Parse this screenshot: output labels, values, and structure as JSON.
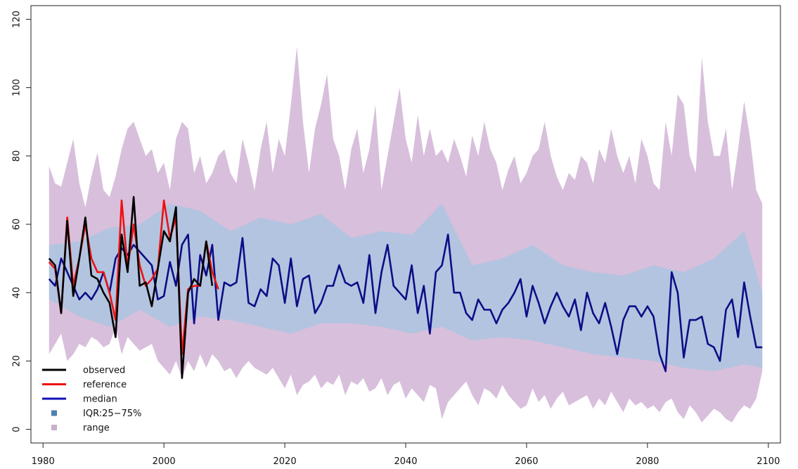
{
  "chart_data": {
    "type": "line",
    "title": "",
    "xlabel": "",
    "ylabel": "",
    "xlim": [
      1978,
      2102
    ],
    "ylim": [
      -4,
      124
    ],
    "x_ticks": [
      1980,
      2000,
      2020,
      2040,
      2060,
      2080,
      2100
    ],
    "y_ticks": [
      0,
      20,
      40,
      60,
      80,
      100,
      120
    ],
    "x_tick_labels": [
      "1980",
      "2000",
      "2020",
      "2040",
      "2060",
      "2080",
      "2100"
    ],
    "y_tick_labels": [
      "0",
      "20",
      "40",
      "60",
      "80",
      "100",
      "120"
    ],
    "grid": false,
    "legend_position": "bottom-left",
    "colors": {
      "observed": "#000000",
      "reference": "#ee1111",
      "median": "#0d0d86",
      "iqr": "#afc4e0",
      "range": "#d8bfdc",
      "iqr_legend": "#4f7fb2",
      "range_legend": "#c9b0cf"
    },
    "legend": [
      {
        "label": "observed",
        "kind": "line",
        "color": "#000000"
      },
      {
        "label": "reference",
        "kind": "line",
        "color": "#ee1111"
      },
      {
        "label": "median",
        "kind": "line",
        "color": "#1010b8"
      },
      {
        "label": "IQR:25−75%",
        "kind": "box",
        "color": "#4f7fb2"
      },
      {
        "label": "range",
        "kind": "box",
        "color": "#c9b0cf"
      }
    ],
    "series": [
      {
        "name": "observed",
        "x": [
          1981,
          1982,
          1983,
          1984,
          1985,
          1986,
          1987,
          1988,
          1989,
          1990,
          1991,
          1992,
          1993,
          1994,
          1995,
          1996,
          1997,
          1998,
          1999,
          2000,
          2001,
          2002,
          2003,
          2004,
          2005,
          2006,
          2007,
          2008
        ],
        "values": [
          50,
          48,
          34,
          61,
          39,
          50,
          62,
          45,
          44,
          40,
          37,
          27,
          57,
          46,
          68,
          42,
          43,
          36,
          47,
          58,
          55,
          65,
          15,
          40,
          44,
          42,
          55,
          42
        ]
      },
      {
        "name": "reference",
        "x": [
          1981,
          1982,
          1983,
          1984,
          1985,
          1986,
          1987,
          1988,
          1989,
          1990,
          1991,
          1992,
          1993,
          1994,
          1995,
          1996,
          1997,
          1998,
          1999,
          2000,
          2001,
          2002,
          2003,
          2004,
          2005,
          2006,
          2007,
          2008,
          2009
        ],
        "values": [
          49,
          47,
          34,
          62,
          42,
          50,
          60,
          50,
          46,
          46,
          40,
          32,
          67,
          47,
          60,
          48,
          42,
          44,
          47,
          67,
          56,
          62,
          22,
          41,
          42,
          42,
          55,
          46,
          41
        ]
      },
      {
        "name": "median",
        "x": [
          1981,
          1982,
          1983,
          1984,
          1985,
          1986,
          1987,
          1988,
          1989,
          1990,
          1991,
          1992,
          1993,
          1994,
          1995,
          1996,
          1997,
          1998,
          1999,
          2000,
          2001,
          2002,
          2003,
          2004,
          2005,
          2006,
          2007,
          2008,
          2009,
          2010,
          2011,
          2012,
          2013,
          2014,
          2015,
          2016,
          2017,
          2018,
          2019,
          2020,
          2021,
          2022,
          2023,
          2024,
          2025,
          2026,
          2027,
          2028,
          2029,
          2030,
          2031,
          2032,
          2033,
          2034,
          2035,
          2036,
          2037,
          2038,
          2039,
          2040,
          2041,
          2042,
          2043,
          2044,
          2045,
          2046,
          2047,
          2048,
          2049,
          2050,
          2051,
          2052,
          2053,
          2054,
          2055,
          2056,
          2057,
          2058,
          2059,
          2060,
          2061,
          2062,
          2063,
          2064,
          2065,
          2066,
          2067,
          2068,
          2069,
          2070,
          2071,
          2072,
          2073,
          2074,
          2075,
          2076,
          2077,
          2078,
          2079,
          2080,
          2081,
          2082,
          2083,
          2084,
          2085,
          2086,
          2087,
          2088,
          2089,
          2090,
          2091,
          2092,
          2093,
          2094,
          2095,
          2096,
          2097,
          2098,
          2099
        ],
        "values": [
          44,
          42,
          50,
          46,
          42,
          38,
          40,
          38,
          41,
          46,
          40,
          50,
          53,
          51,
          54,
          52,
          50,
          48,
          38,
          39,
          49,
          42,
          54,
          57,
          31,
          51,
          45,
          54,
          32,
          43,
          42,
          43,
          56,
          37,
          36,
          41,
          39,
          50,
          48,
          37,
          50,
          36,
          44,
          45,
          34,
          37,
          42,
          42,
          48,
          43,
          42,
          43,
          37,
          51,
          34,
          46,
          54,
          42,
          40,
          38,
          48,
          34,
          42,
          28,
          46,
          48,
          57,
          40,
          40,
          34,
          32,
          38,
          35,
          35,
          31,
          35,
          37,
          40,
          44,
          33,
          42,
          37,
          31,
          36,
          40,
          36,
          33,
          38,
          29,
          40,
          34,
          31,
          37,
          30,
          22,
          32,
          36,
          36,
          33,
          36,
          33,
          22,
          17,
          46,
          40,
          21,
          32,
          32,
          33,
          25,
          24,
          20,
          35,
          38,
          27,
          43,
          33,
          24,
          24
        ]
      }
    ],
    "iqr_band": {
      "x": [
        1981,
        1986,
        1991,
        1996,
        2001,
        2006,
        2011,
        2016,
        2021,
        2026,
        2031,
        2036,
        2041,
        2046,
        2051,
        2056,
        2061,
        2066,
        2071,
        2076,
        2081,
        2086,
        2091,
        2096,
        2099
      ],
      "lower": [
        38,
        33,
        30,
        35,
        30,
        33,
        32,
        30,
        28,
        31,
        31,
        30,
        28,
        30,
        26,
        27,
        26,
        24,
        22,
        21,
        20,
        18,
        17,
        19,
        18
      ],
      "upper": [
        54,
        55,
        59,
        60,
        66,
        64,
        58,
        62,
        60,
        63,
        56,
        58,
        57,
        66,
        48,
        50,
        54,
        48,
        46,
        45,
        48,
        46,
        50,
        58,
        40
      ]
    },
    "range_band": {
      "x": [
        1981,
        1982,
        1983,
        1984,
        1985,
        1986,
        1987,
        1988,
        1989,
        1990,
        1991,
        1992,
        1993,
        1994,
        1995,
        1996,
        1997,
        1998,
        1999,
        2000,
        2001,
        2002,
        2003,
        2004,
        2005,
        2006,
        2007,
        2008,
        2009,
        2010,
        2011,
        2012,
        2013,
        2014,
        2015,
        2016,
        2017,
        2018,
        2019,
        2020,
        2021,
        2022,
        2023,
        2024,
        2025,
        2026,
        2027,
        2028,
        2029,
        2030,
        2031,
        2032,
        2033,
        2034,
        2035,
        2036,
        2037,
        2038,
        2039,
        2040,
        2041,
        2042,
        2043,
        2044,
        2045,
        2046,
        2047,
        2048,
        2049,
        2050,
        2051,
        2052,
        2053,
        2054,
        2055,
        2056,
        2057,
        2058,
        2059,
        2060,
        2061,
        2062,
        2063,
        2064,
        2065,
        2066,
        2067,
        2068,
        2069,
        2070,
        2071,
        2072,
        2073,
        2074,
        2075,
        2076,
        2077,
        2078,
        2079,
        2080,
        2081,
        2082,
        2083,
        2084,
        2085,
        2086,
        2087,
        2088,
        2089,
        2090,
        2091,
        2092,
        2093,
        2094,
        2095,
        2096,
        2097,
        2098,
        2099
      ],
      "lower": [
        22,
        25,
        28,
        20,
        22,
        25,
        24,
        27,
        26,
        24,
        25,
        30,
        22,
        27,
        25,
        23,
        24,
        25,
        20,
        18,
        16,
        20,
        15,
        20,
        17,
        22,
        18,
        22,
        20,
        17,
        18,
        15,
        18,
        20,
        18,
        17,
        16,
        18,
        15,
        12,
        16,
        10,
        13,
        14,
        16,
        12,
        14,
        13,
        16,
        10,
        14,
        13,
        15,
        11,
        12,
        15,
        10,
        13,
        14,
        9,
        12,
        10,
        8,
        13,
        12,
        3,
        8,
        10,
        12,
        14,
        10,
        7,
        12,
        11,
        9,
        13,
        10,
        8,
        6,
        7,
        12,
        8,
        10,
        6,
        9,
        11,
        7,
        8,
        9,
        10,
        6,
        9,
        7,
        11,
        8,
        5,
        9,
        7,
        8,
        6,
        7,
        5,
        8,
        9,
        5,
        3,
        7,
        5,
        2,
        4,
        6,
        5,
        3,
        2,
        5,
        7,
        6,
        9,
        17
      ],
      "upper": [
        77,
        72,
        71,
        78,
        85,
        72,
        65,
        74,
        81,
        70,
        68,
        74,
        82,
        88,
        90,
        85,
        80,
        82,
        75,
        78,
        70,
        85,
        90,
        88,
        75,
        80,
        72,
        75,
        80,
        82,
        75,
        72,
        85,
        78,
        70,
        82,
        90,
        75,
        85,
        80,
        95,
        112,
        90,
        75,
        88,
        95,
        104,
        85,
        80,
        70,
        82,
        88,
        75,
        82,
        95,
        70,
        80,
        90,
        100,
        85,
        78,
        92,
        80,
        88,
        80,
        82,
        78,
        85,
        80,
        74,
        86,
        80,
        90,
        82,
        78,
        70,
        76,
        80,
        72,
        75,
        80,
        82,
        90,
        80,
        74,
        70,
        75,
        73,
        80,
        78,
        72,
        82,
        78,
        88,
        80,
        75,
        80,
        72,
        85,
        80,
        72,
        70,
        90,
        80,
        98,
        95,
        80,
        75,
        109,
        90,
        80,
        80,
        88,
        70,
        82,
        96,
        85,
        70,
        66
      ]
    }
  }
}
